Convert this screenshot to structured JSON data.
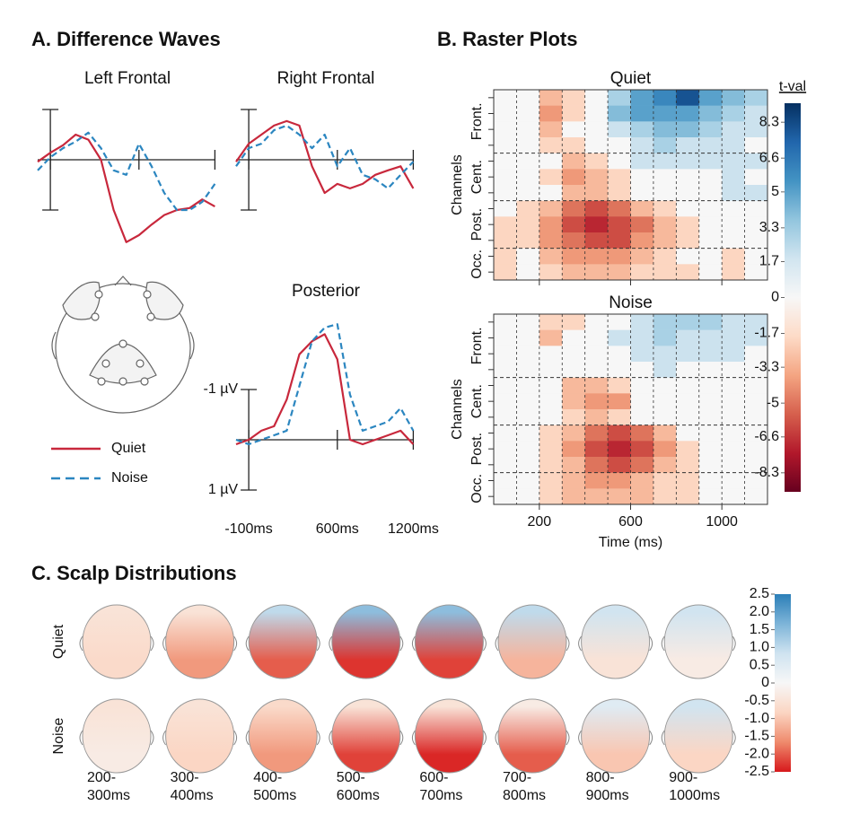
{
  "figure": {
    "panels": [
      "A. Difference Waves",
      "B. Raster Plots",
      "C. Scalp Distributions"
    ]
  },
  "chart_data": [
    {
      "type": "line",
      "x": [
        -200,
        -100,
        0,
        100,
        200,
        300,
        400,
        500,
        600,
        700,
        800,
        900,
        1000,
        1100,
        1200
      ],
      "xlim": [
        -200,
        1200
      ],
      "xticks": [
        {
          "value": -100,
          "label": "-100ms"
        },
        {
          "value": 600,
          "label": "600ms"
        },
        {
          "value": 1200,
          "label": "1200ms"
        }
      ],
      "ylim": [
        -2.5,
        1.8
      ],
      "y_inverted": true,
      "yticks": [
        {
          "value": -1,
          "label": "-1 µV"
        },
        {
          "value": 1,
          "label": "1 µV"
        }
      ],
      "series": [
        {
          "name": "Quiet",
          "color": "#c8283c",
          "dash": false
        },
        {
          "name": "Noise",
          "color": "#2b86c0",
          "dash": true
        }
      ],
      "subplots": [
        {
          "title": "Left Frontal",
          "values": [
            [
              0.04,
              -0.14,
              -0.29,
              -0.5,
              -0.4,
              0,
              1.0,
              1.64,
              1.5,
              1.29,
              1.1,
              1.0,
              0.96,
              0.79,
              0.93
            ],
            [
              0.21,
              -0.05,
              -0.23,
              -0.36,
              -0.54,
              -0.23,
              0.21,
              0.3,
              -0.32,
              0.13,
              0.66,
              1.0,
              1.0,
              0.84,
              0.48
            ]
          ]
        },
        {
          "title": "Right Frontal",
          "values": [
            [
              0.04,
              -0.32,
              -0.5,
              -0.68,
              -0.77,
              -0.68,
              0.13,
              0.66,
              0.48,
              0.57,
              0.48,
              0.3,
              0.21,
              0.13,
              0.57
            ],
            [
              0.13,
              -0.23,
              -0.32,
              -0.59,
              -0.68,
              -0.5,
              -0.23,
              -0.5,
              0.13,
              -0.23,
              0.3,
              0.39,
              0.57,
              0.3,
              0.04
            ]
          ]
        },
        {
          "title": "Posterior",
          "values": [
            [
              0.09,
              0,
              -0.18,
              -0.27,
              -0.8,
              -1.7,
              -1.96,
              -2.1,
              -1.6,
              0,
              0.09,
              0,
              -0.09,
              -0.18,
              0.09
            ],
            [
              0,
              0.09,
              0,
              -0.09,
              -0.18,
              -1.07,
              -1.96,
              -2.23,
              -2.3,
              -0.9,
              -0.18,
              -0.27,
              -0.36,
              -0.63,
              -0.18
            ]
          ]
        }
      ]
    },
    {
      "type": "heatmap",
      "xlabel": "Time (ms)",
      "ylabel": "Channels",
      "bins": [
        0,
        100,
        200,
        300,
        400,
        500,
        600,
        700,
        800,
        900,
        1000,
        1100,
        1200
      ],
      "xlim": [
        0,
        1200
      ],
      "xticks": [
        200,
        600,
        1000
      ],
      "row_groups": [
        {
          "label": "Front.",
          "rows": 4
        },
        {
          "label": "Cent.",
          "rows": 3
        },
        {
          "label": "Post.",
          "rows": 3
        },
        {
          "label": "Occ.",
          "rows": 2
        }
      ],
      "subplots": [
        {
          "title": "Quiet",
          "values": [
            [
              0,
              0,
              -3,
              -2,
              0,
              3,
              5,
              6,
              8,
              5,
              4,
              3
            ],
            [
              0,
              0,
              -4,
              -2,
              0,
              4,
              5,
              5,
              5,
              4,
              3,
              2
            ],
            [
              0,
              0,
              -3,
              0,
              0,
              2,
              3,
              4,
              4,
              3,
              2,
              2
            ],
            [
              0,
              0,
              -2,
              -2,
              0,
              0,
              2,
              3,
              2,
              2,
              2,
              0
            ],
            [
              0,
              0,
              0,
              -3,
              -2,
              0,
              2,
              2,
              2,
              2,
              2,
              2
            ],
            [
              0,
              0,
              -2,
              -4,
              -3,
              -2,
              0,
              0,
              0,
              0,
              2,
              0
            ],
            [
              0,
              0,
              0,
              -3,
              -3,
              -2,
              0,
              0,
              0,
              0,
              2,
              2
            ],
            [
              0,
              -2,
              -3,
              -5,
              -6,
              -5,
              -3,
              -2,
              0,
              0,
              0,
              0
            ],
            [
              -2,
              -2,
              -4,
              -6,
              -7,
              -6,
              -5,
              -3,
              -2,
              0,
              0,
              0
            ],
            [
              -2,
              -2,
              -4,
              -5,
              -6,
              -6,
              -4,
              -3,
              -2,
              0,
              0,
              0
            ],
            [
              -2,
              0,
              -3,
              -4,
              -4,
              -4,
              -3,
              -2,
              0,
              0,
              -2,
              0
            ],
            [
              -2,
              0,
              -2,
              -3,
              -3,
              -3,
              -2,
              -2,
              -2,
              0,
              -2,
              0
            ]
          ]
        },
        {
          "title": "Noise",
          "values": [
            [
              0,
              0,
              -2,
              -2,
              0,
              0,
              2,
              3,
              3,
              3,
              2,
              2
            ],
            [
              0,
              0,
              -3,
              0,
              0,
              2,
              2,
              3,
              2,
              2,
              2,
              2
            ],
            [
              0,
              0,
              0,
              0,
              0,
              0,
              2,
              2,
              2,
              2,
              2,
              0
            ],
            [
              0,
              0,
              0,
              0,
              0,
              0,
              0,
              2,
              0,
              0,
              0,
              0
            ],
            [
              0,
              0,
              0,
              -3,
              -3,
              -2,
              0,
              0,
              0,
              0,
              0,
              0
            ],
            [
              0,
              0,
              0,
              -3,
              -4,
              -4,
              0,
              0,
              0,
              0,
              0,
              0
            ],
            [
              0,
              0,
              0,
              -2,
              -3,
              -2,
              0,
              0,
              0,
              0,
              0,
              0
            ],
            [
              0,
              0,
              -2,
              -3,
              -5,
              -6,
              -5,
              -3,
              0,
              0,
              0,
              0
            ],
            [
              0,
              0,
              -2,
              -4,
              -6,
              -7,
              -6,
              -4,
              -2,
              0,
              0,
              0
            ],
            [
              0,
              0,
              -2,
              -3,
              -5,
              -6,
              -5,
              -3,
              -2,
              0,
              0,
              0
            ],
            [
              0,
              0,
              -2,
              -3,
              -4,
              -4,
              -3,
              -2,
              -2,
              0,
              0,
              0
            ],
            [
              0,
              0,
              -2,
              -3,
              -3,
              -3,
              -3,
              -2,
              -2,
              0,
              0,
              0
            ]
          ]
        }
      ],
      "colorbar": {
        "title": "t-val",
        "clim": [
          -9.2,
          9.2
        ],
        "ticks": [
          8.3,
          6.6,
          5,
          3.3,
          1.7,
          0,
          -1.7,
          -3.3,
          -5,
          -6.6,
          -8.3
        ],
        "colors": [
          "#67001f",
          "#b2182b",
          "#d6604d",
          "#f4a582",
          "#fddbc7",
          "#f7f7f7",
          "#d1e5f0",
          "#92c5de",
          "#4393c3",
          "#2166ac",
          "#053061"
        ]
      }
    },
    {
      "type": "topomap",
      "categories": [
        [
          "200-",
          "300ms"
        ],
        [
          "300-",
          "400ms"
        ],
        [
          "400-",
          "500ms"
        ],
        [
          "500-",
          "600ms"
        ],
        [
          "600-",
          "700ms"
        ],
        [
          "700-",
          "800ms"
        ],
        [
          "800-",
          "900ms"
        ],
        [
          "900-",
          "1000ms"
        ]
      ],
      "series": [
        {
          "name": "Quiet",
          "front": [
            -0.5,
            -0.5,
            1.0,
            1.5,
            1.5,
            1.0,
            0.8,
            0.8
          ],
          "back": [
            -0.7,
            -1.5,
            -2.0,
            -2.3,
            -2.2,
            -1.2,
            -0.5,
            -0.3
          ]
        },
        {
          "name": "Noise",
          "front": [
            -0.5,
            -0.5,
            -0.7,
            -0.5,
            -0.5,
            -0.3,
            0.5,
            0.8
          ],
          "back": [
            -0.3,
            -0.8,
            -1.5,
            -2.2,
            -2.4,
            -2.0,
            -1.0,
            -0.8
          ]
        }
      ],
      "clim": [
        -2.5,
        2.5
      ],
      "ticks": [
        2.5,
        {
          "value": 2,
          "label": "2.0"
        },
        1.5,
        {
          "value": 1,
          "label": "1.0"
        },
        0.5,
        0,
        -0.5,
        -1.5,
        {
          "value": -1,
          "label": "-1.0"
        },
        {
          "value": -2,
          "label": "-2.0"
        },
        -2.5
      ],
      "colors": [
        "#d7191c",
        "#ef8a6c",
        "#fbd5c2",
        "#f7f7f7",
        "#cfe3f0",
        "#7db4d8",
        "#2c7fb8"
      ]
    }
  ]
}
